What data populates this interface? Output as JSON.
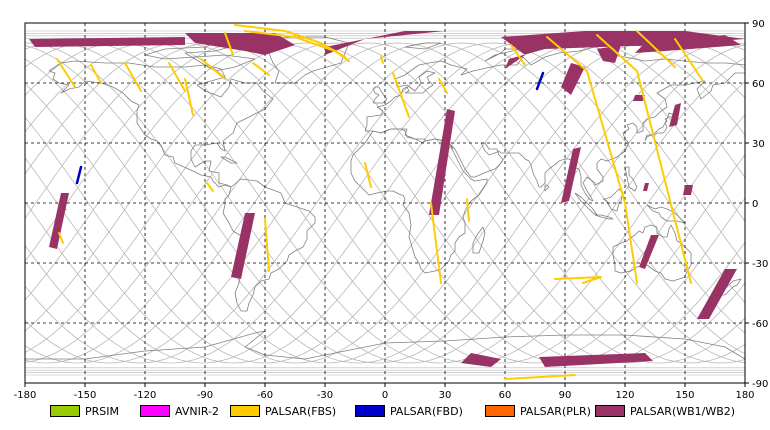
{
  "chart_data": {
    "type": "map",
    "projection": "equirectangular",
    "xlim": [
      -180,
      180
    ],
    "ylim": [
      -90,
      90
    ],
    "grid": true,
    "x_ticks": [
      -180,
      -150,
      -120,
      -90,
      -60,
      -30,
      0,
      30,
      60,
      90,
      120,
      150,
      180
    ],
    "y_ticks": [
      90,
      60,
      30,
      0,
      -30,
      -60,
      -90
    ],
    "colors": {
      "orbit": "#b8b8b8",
      "coast": "#808080",
      "grid": "#000000",
      "PRSIM": "#99cc00",
      "AVNIR-2": "#ff00ff",
      "PALSAR(FBS)": "#ffcc00",
      "PALSAR(FBD)": "#0000cc",
      "PALSAR(PLR)": "#ff6600",
      "PALSAR(WB1/WB2)": "#993366"
    },
    "legend": [
      {
        "name": "PRSIM",
        "color": "#99cc00"
      },
      {
        "name": "AVNIR-2",
        "color": "#ff00ff"
      },
      {
        "name": "PALSAR(FBS)",
        "color": "#ffcc00"
      },
      {
        "name": "PALSAR(FBD)",
        "color": "#0000cc"
      },
      {
        "name": "PALSAR(PLR)",
        "color": "#ff6600"
      },
      {
        "name": "PALSAR(WB1/WB2)",
        "color": "#993366"
      }
    ],
    "series": [
      {
        "sensor": "PALSAR(WB1/WB2)",
        "polygons": [
          [
            [
              -178,
              82
            ],
            [
              -100,
              83
            ],
            [
              -100,
              79
            ],
            [
              -175,
              78
            ]
          ],
          [
            [
              -100,
              85
            ],
            [
              -55,
              85
            ],
            [
              -45,
              79
            ],
            [
              -60,
              74
            ],
            [
              -70,
              76
            ],
            [
              -95,
              80
            ]
          ],
          [
            [
              -30,
              78
            ],
            [
              10,
              86
            ],
            [
              30,
              86
            ],
            [
              -10,
              82
            ],
            [
              -30,
              74
            ]
          ],
          [
            [
              58,
              83
            ],
            [
              100,
              86
            ],
            [
              150,
              86
            ],
            [
              180,
              82
            ],
            [
              140,
              79
            ],
            [
              108,
              78
            ],
            [
              80,
              77
            ],
            [
              62,
              72
            ],
            [
              60,
              67
            ],
            [
              70,
              74
            ]
          ],
          [
            [
              93,
              70
            ],
            [
              100,
              68
            ],
            [
              93,
              54
            ],
            [
              88,
              58
            ]
          ],
          [
            [
              106,
              77
            ],
            [
              118,
              79
            ],
            [
              115,
              70
            ],
            [
              109,
              71
            ]
          ],
          [
            [
              130,
              80
            ],
            [
              170,
              84
            ],
            [
              178,
              79
            ],
            [
              140,
              76
            ],
            [
              125,
              75
            ]
          ],
          [
            [
              31,
              47
            ],
            [
              35,
              46
            ],
            [
              27,
              -6
            ],
            [
              22,
              -6
            ]
          ],
          [
            [
              -70,
              -5
            ],
            [
              -65,
              -5
            ],
            [
              -72,
              -38
            ],
            [
              -77,
              -37
            ]
          ],
          [
            [
              -162,
              5
            ],
            [
              -158,
              5
            ],
            [
              -164,
              -23
            ],
            [
              -168,
              -22
            ]
          ],
          [
            [
              -160,
              -3
            ],
            [
              -159,
              -3
            ],
            [
              -162,
              -5
            ]
          ],
          [
            [
              94,
              27
            ],
            [
              98,
              28
            ],
            [
              92,
              1
            ],
            [
              88,
              0
            ]
          ],
          [
            [
              145,
              49
            ],
            [
              148,
              50
            ],
            [
              146,
              39
            ],
            [
              142,
              38
            ]
          ],
          [
            [
              125,
              54
            ],
            [
              130,
              54
            ],
            [
              129,
              51
            ],
            [
              124,
              51
            ]
          ],
          [
            [
              133,
              -16
            ],
            [
              137,
              -16
            ],
            [
              130,
              -33
            ],
            [
              127,
              -32
            ]
          ],
          [
            [
              170,
              -33
            ],
            [
              176,
              -33
            ],
            [
              162,
              -58
            ],
            [
              156,
              -58
            ]
          ],
          [
            [
              130,
              10
            ],
            [
              132,
              10
            ],
            [
              131,
              6
            ],
            [
              129,
              6
            ]
          ],
          [
            [
              150,
              9
            ],
            [
              154,
              9
            ],
            [
              153,
              4
            ],
            [
              149,
              4
            ]
          ],
          [
            [
              43,
              -75
            ],
            [
              58,
              -78
            ],
            [
              53,
              -82
            ],
            [
              38,
              -80
            ]
          ],
          [
            [
              77,
              -77
            ],
            [
              130,
              -75
            ],
            [
              134,
              -79
            ],
            [
              80,
              -82
            ]
          ]
        ]
      },
      {
        "sensor": "PALSAR(FBS)",
        "lines": [
          [
            [
              -75,
              89
            ],
            [
              -50,
              86
            ],
            [
              -32,
              80
            ],
            [
              -20,
              73
            ]
          ],
          [
            [
              -70,
              86
            ],
            [
              -45,
              83
            ],
            [
              -25,
              76
            ],
            [
              -18,
              71
            ]
          ],
          [
            [
              -164,
              72
            ],
            [
              -155,
              58
            ]
          ],
          [
            [
              -147,
              69
            ],
            [
              -142,
              60
            ]
          ],
          [
            [
              -130,
              70
            ],
            [
              -122,
              56
            ]
          ],
          [
            [
              -108,
              70
            ],
            [
              -100,
              56
            ]
          ],
          [
            [
              -92,
              72
            ],
            [
              -80,
              62
            ]
          ],
          [
            [
              -100,
              62
            ],
            [
              -96,
              44
            ]
          ],
          [
            [
              -80,
              85
            ],
            [
              -76,
              74
            ]
          ],
          [
            [
              -66,
              70
            ],
            [
              -58,
              64
            ]
          ],
          [
            [
              -89,
              10
            ],
            [
              -86,
              6
            ]
          ],
          [
            [
              -60,
              -8
            ],
            [
              -58,
              -34
            ]
          ],
          [
            [
              -163,
              -15
            ],
            [
              -161,
              -20
            ]
          ],
          [
            [
              -10,
              20
            ],
            [
              -7,
              8
            ]
          ],
          [
            [
              -2,
              73
            ],
            [
              -1,
              70
            ]
          ],
          [
            [
              4,
              65
            ],
            [
              12,
              43
            ]
          ],
          [
            [
              27,
              62
            ],
            [
              31,
              55
            ]
          ],
          [
            [
              41,
              2
            ],
            [
              42,
              -9
            ]
          ],
          [
            [
              23,
              0
            ],
            [
              28,
              -40
            ]
          ],
          [
            [
              63,
              79
            ],
            [
              70,
              69
            ]
          ],
          [
            [
              81,
              83
            ],
            [
              101,
              66
            ],
            [
              120,
              0
            ],
            [
              126,
              -40
            ]
          ],
          [
            [
              106,
              84
            ],
            [
              126,
              66
            ],
            [
              153,
              -40
            ]
          ],
          [
            [
              126,
              86
            ],
            [
              145,
              68
            ]
          ],
          [
            [
              145,
              82
            ],
            [
              159,
              61
            ]
          ],
          [
            [
              85,
              -38
            ],
            [
              108,
              -37
            ],
            [
              99,
              -40
            ]
          ],
          [
            [
              60,
              -88
            ],
            [
              95,
              -86
            ]
          ]
        ]
      },
      {
        "sensor": "PALSAR(FBD)",
        "lines": [
          [
            [
              79,
              65
            ],
            [
              76,
              57
            ]
          ],
          [
            [
              -152,
              18
            ],
            [
              -154,
              10
            ]
          ]
        ]
      }
    ]
  }
}
